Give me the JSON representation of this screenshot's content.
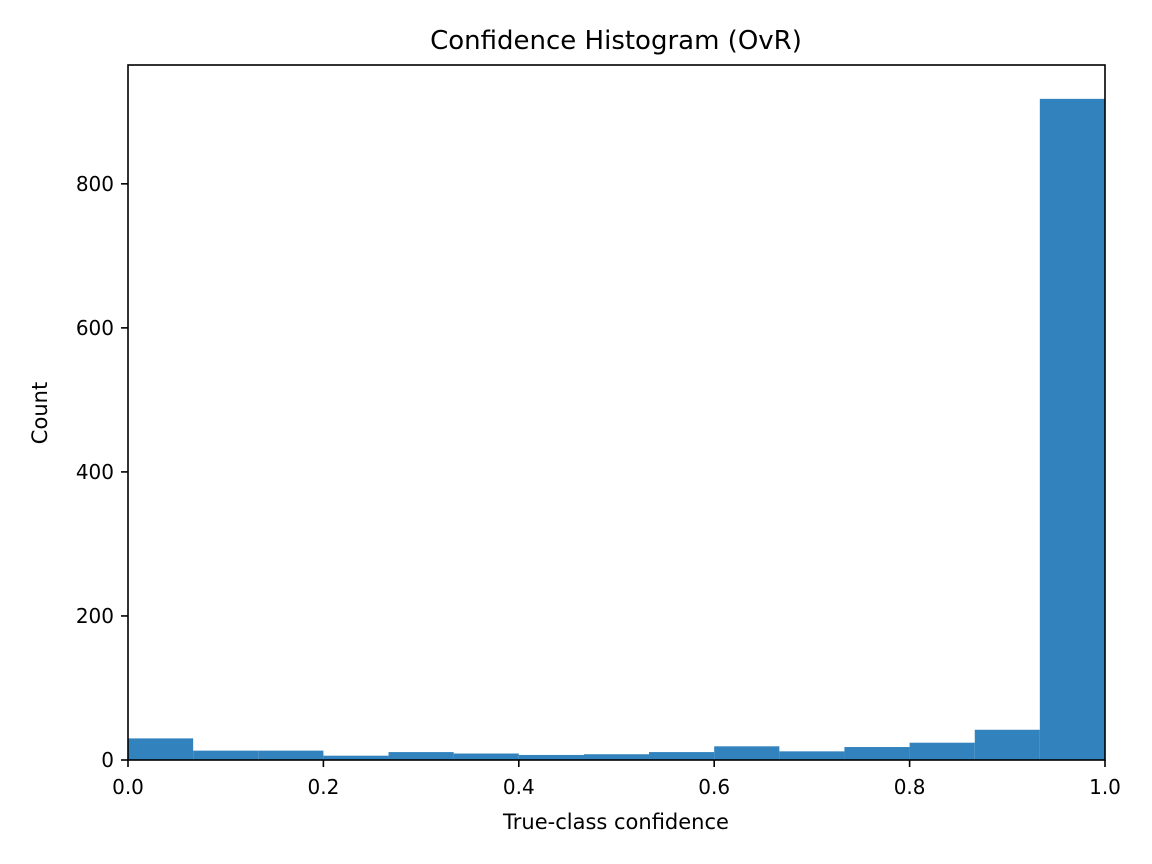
{
  "chart_data": {
    "type": "bar",
    "title": "Confidence Histogram (OvR)",
    "xlabel": "True-class confidence",
    "ylabel": "Count",
    "xlim": [
      0.0,
      1.0
    ],
    "ylim": [
      0,
      965
    ],
    "grid": false,
    "bar_color": "#3182bd",
    "bin_edges": [
      0.0,
      0.0667,
      0.1333,
      0.2,
      0.2667,
      0.3333,
      0.4,
      0.4667,
      0.5333,
      0.6,
      0.6667,
      0.7333,
      0.8,
      0.8667,
      0.9333,
      1.0
    ],
    "values": [
      30,
      13,
      13,
      6,
      11,
      9,
      7,
      8,
      11,
      19,
      12,
      18,
      24,
      42,
      918
    ],
    "xticks": [
      0.0,
      0.2,
      0.4,
      0.6,
      0.8,
      1.0
    ],
    "xtick_labels": [
      "0.0",
      "0.2",
      "0.4",
      "0.6",
      "0.8",
      "1.0"
    ],
    "yticks": [
      0,
      200,
      400,
      600,
      800
    ],
    "ytick_labels": [
      "0",
      "200",
      "400",
      "600",
      "800"
    ]
  }
}
